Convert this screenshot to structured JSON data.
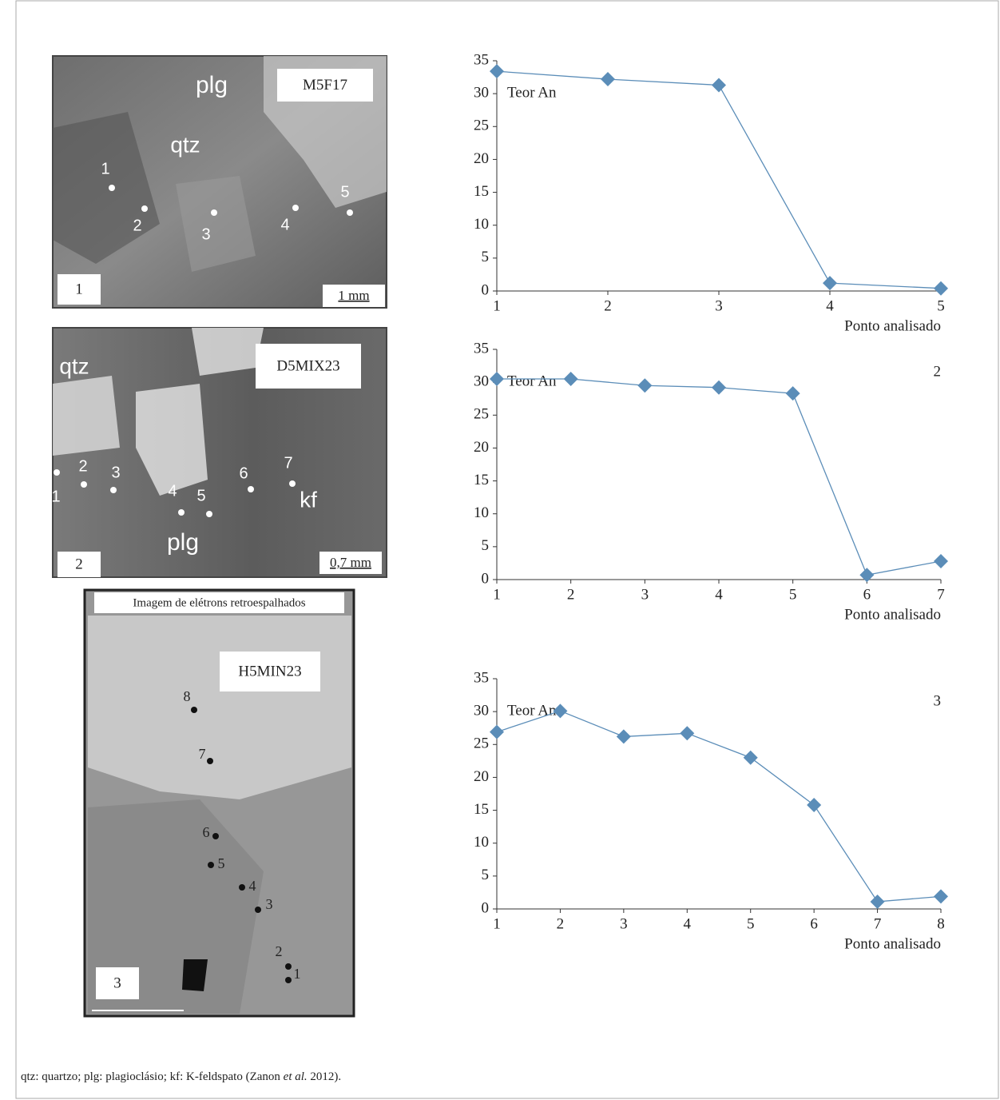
{
  "chart_data": [
    {
      "type": "line",
      "label": "Teor An",
      "x": [
        1,
        2,
        3,
        4,
        5
      ],
      "values": [
        33.4,
        32.2,
        31.3,
        1.2,
        0.4
      ],
      "color": "#5b8db8",
      "xlim": [
        1,
        5
      ],
      "ylim": [
        0,
        35
      ],
      "xticks": [
        1,
        2,
        3,
        4,
        5
      ],
      "yticks": [
        0,
        5,
        10,
        15,
        20,
        25,
        30,
        35
      ],
      "xlabel": "Ponto analisado"
    },
    {
      "type": "line",
      "label": "Teor An",
      "annotation": "2",
      "x": [
        1,
        2,
        3,
        4,
        5,
        6,
        7
      ],
      "values": [
        30.5,
        30.5,
        29.5,
        29.2,
        28.3,
        0.7,
        2.8
      ],
      "color": "#5b8db8",
      "xlim": [
        1,
        7
      ],
      "ylim": [
        0,
        35
      ],
      "xticks": [
        1,
        2,
        3,
        4,
        5,
        6,
        7
      ],
      "yticks": [
        0,
        5,
        10,
        15,
        20,
        25,
        30,
        35
      ],
      "xlabel": "Ponto analisado"
    },
    {
      "type": "line",
      "label": "Teor An",
      "annotation": "3",
      "x": [
        1,
        2,
        3,
        4,
        5,
        6,
        7,
        8
      ],
      "values": [
        26.9,
        30.1,
        26.2,
        26.7,
        23.0,
        15.8,
        1.1,
        1.9
      ],
      "color": "#5b8db8",
      "xlim": [
        1,
        8
      ],
      "ylim": [
        0,
        35
      ],
      "xticks": [
        1,
        2,
        3,
        4,
        5,
        6,
        7,
        8
      ],
      "yticks": [
        0,
        5,
        10,
        15,
        20,
        25,
        30,
        35
      ],
      "xlabel": "Ponto analisado"
    }
  ],
  "images": [
    {
      "sample": "M5F17",
      "panel": "1",
      "scale": "1 mm",
      "minerals": [
        "plg",
        "qtz"
      ],
      "points": [
        "1",
        "2",
        "3",
        "4",
        "5"
      ]
    },
    {
      "sample": "D5MIX23",
      "panel": "2",
      "scale": "0,7 mm",
      "minerals": [
        "qtz",
        "kf",
        "plg"
      ],
      "points": [
        "1",
        "2",
        "3",
        "4",
        "5",
        "6",
        "7"
      ]
    },
    {
      "header": "Imagem de elétrons retroespalhados",
      "sample": "H5MIN23",
      "panel": "3",
      "points": [
        "1",
        "2",
        "3",
        "4",
        "5",
        "6",
        "7",
        "8"
      ]
    }
  ],
  "caption": [
    "qtz: quartzo; plg: plagioclásio; kf: K-feldspato (Zanon ",
    "et al.",
    " 2012)."
  ]
}
